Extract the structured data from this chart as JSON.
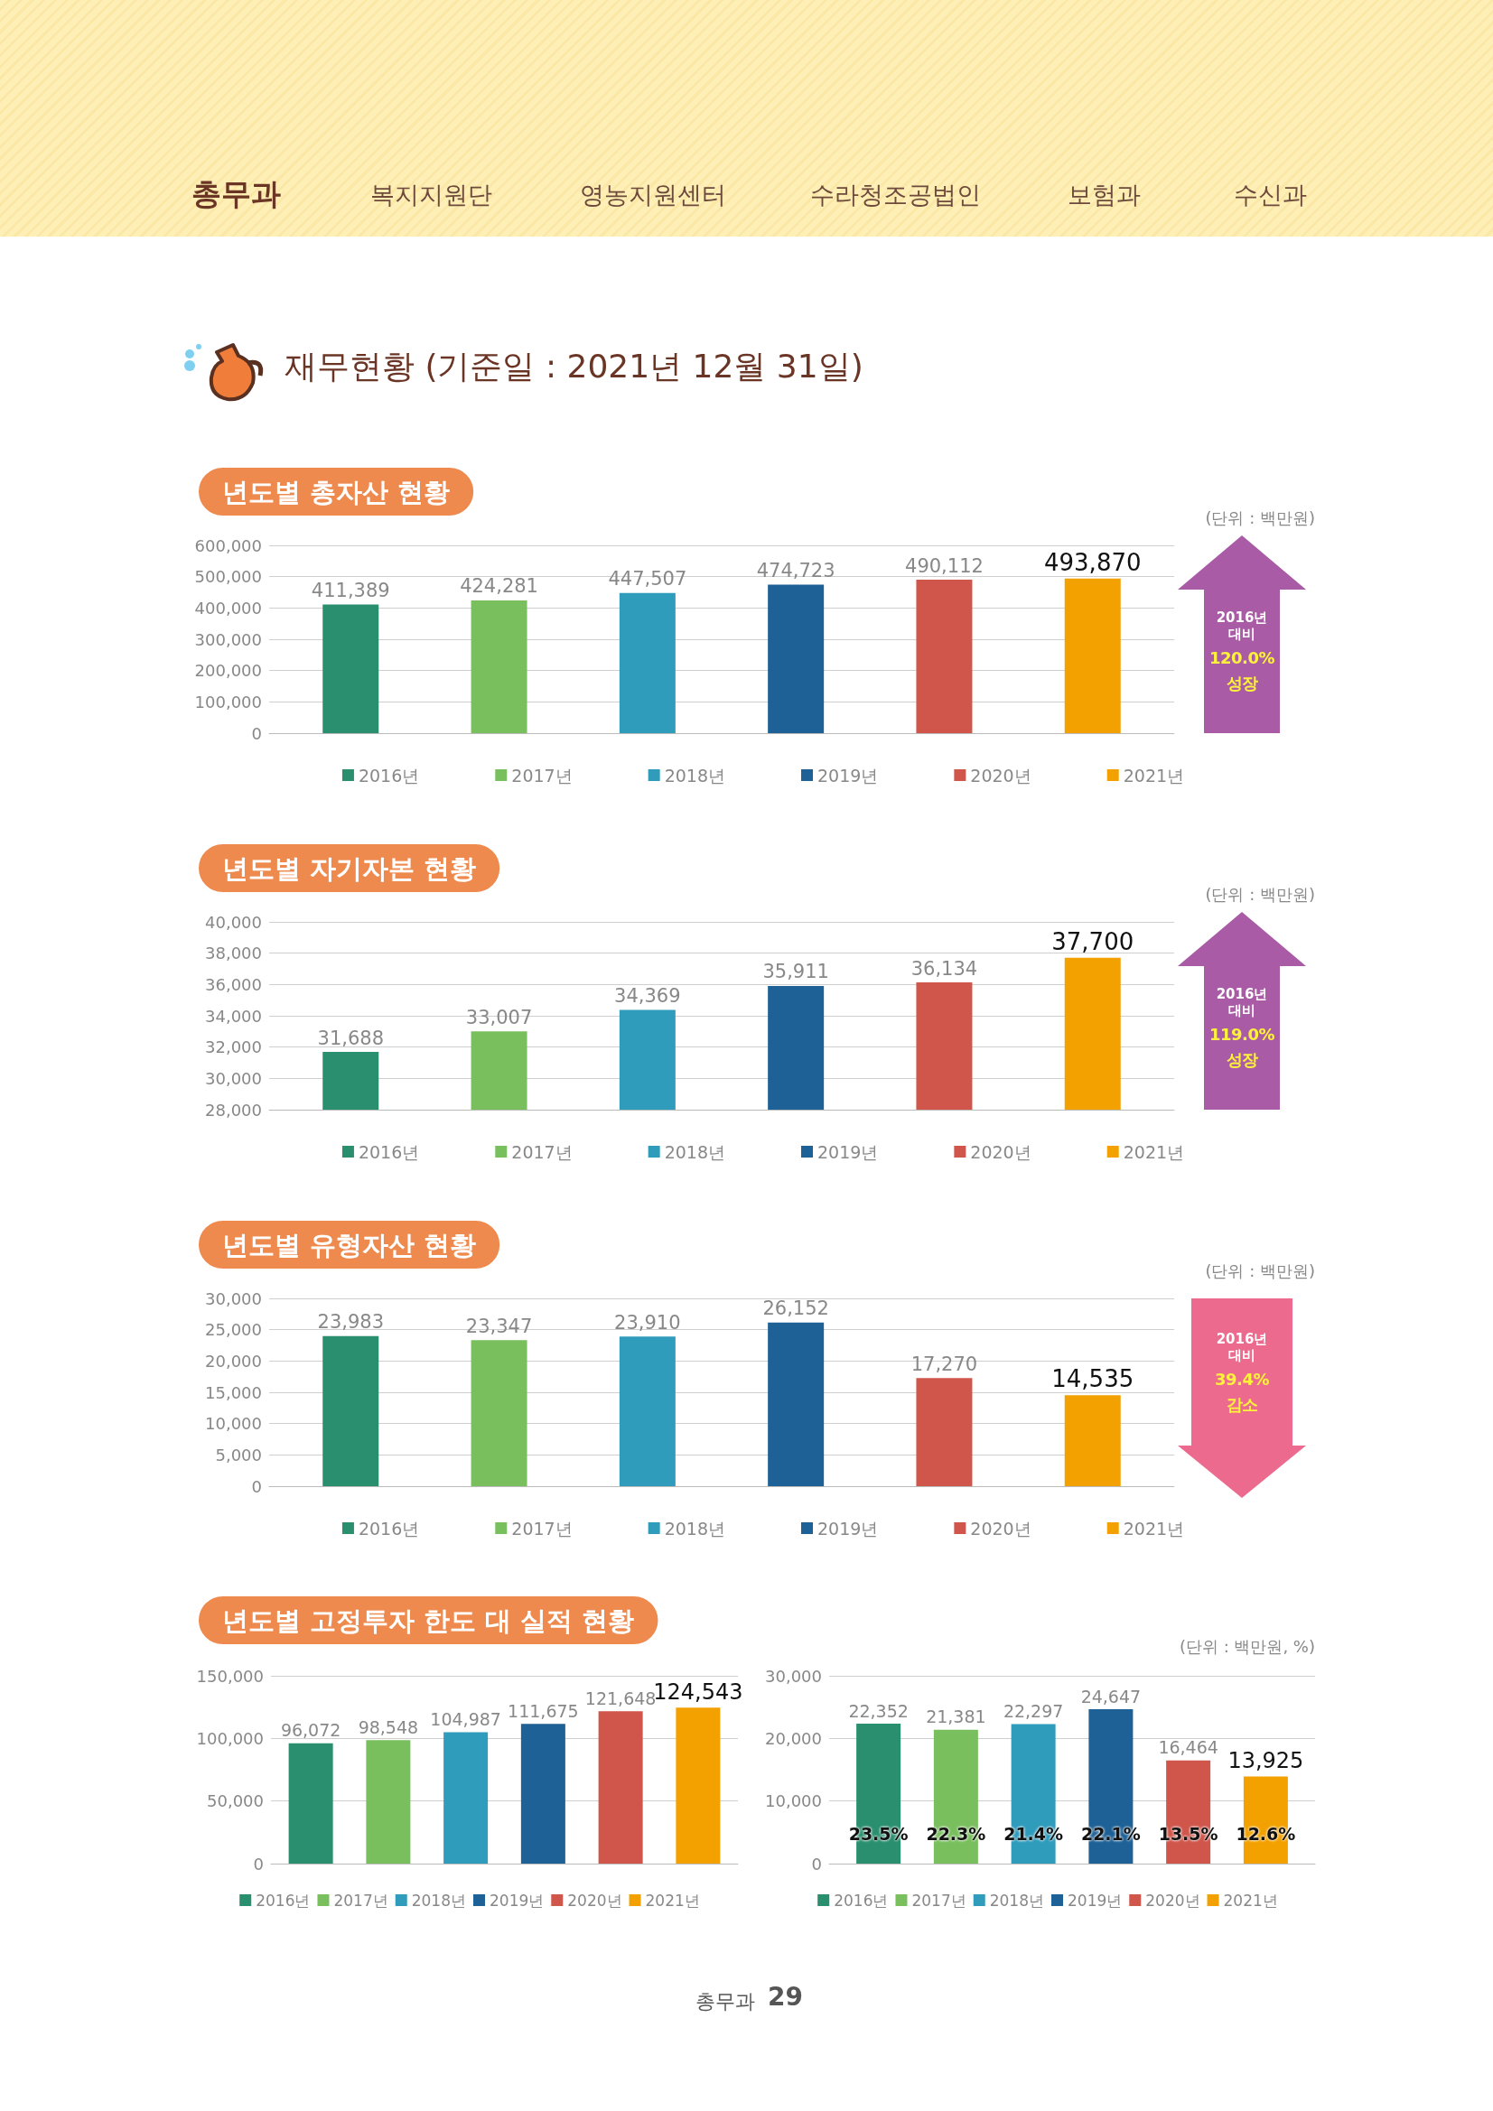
{
  "chart_data": [
    {
      "type": "other",
      "title": "재무현황 (기준일 : 2021년 12월 31일)",
      "annotations": [
        "총무과",
        "복지지원단",
        "영농지원센터",
        "수라청조공법인",
        "보험과",
        "수신과",
        "총무과",
        "29"
      ]
    },
    {
      "type": "bar",
      "title": "년도별 총자산 현황",
      "categories": [
        null
      ],
      "series": [
        {
          "name": "2016년",
          "color": "#2a8f6e",
          "values": [
            411389
          ],
          "value_labels": [
            "411,389"
          ]
        },
        {
          "name": "2017년",
          "color": "#79bf5e",
          "values": [
            424281
          ],
          "value_labels": [
            "424,281"
          ]
        },
        {
          "name": "2018년",
          "color": "#2f9cbc",
          "values": [
            447507
          ],
          "value_labels": [
            "447,507"
          ]
        },
        {
          "name": "2019년",
          "color": "#1d6196",
          "values": [
            474723
          ],
          "value_labels": [
            "474,723"
          ]
        },
        {
          "name": "2020년",
          "color": "#d0554b",
          "values": [
            490112
          ],
          "value_labels": [
            "490,112"
          ]
        },
        {
          "name": "2021년",
          "color": "#f3a100",
          "values": [
            493870
          ],
          "value_labels": [
            "493,870"
          ]
        }
      ],
      "ylim": [
        0,
        600000
      ],
      "yticks": [
        {
          "value": 0,
          "label": "0"
        },
        {
          "value": 100000,
          "label": "100,000"
        },
        {
          "value": 200000,
          "label": "200,000"
        },
        {
          "value": 300000,
          "label": "300,000"
        },
        {
          "value": 400000,
          "label": "400,000"
        },
        {
          "value": 500000,
          "label": "500,000"
        },
        {
          "value": 600000,
          "label": "600,000"
        }
      ],
      "grid": "y",
      "legend": "bottom",
      "tick_labels": "y",
      "annotations": [
        "(단위 : 백만원)",
        "2016년 대비",
        "120.0% 성장"
      ]
    },
    {
      "type": "bar",
      "title": "년도별 자기자본 현황",
      "categories": [
        null
      ],
      "series": [
        {
          "name": "2016년",
          "color": "#2a8f6e",
          "values": [
            31688
          ],
          "value_labels": [
            "31,688"
          ]
        },
        {
          "name": "2017년",
          "color": "#79bf5e",
          "values": [
            33007
          ],
          "value_labels": [
            "33,007"
          ]
        },
        {
          "name": "2018년",
          "color": "#2f9cbc",
          "values": [
            34369
          ],
          "value_labels": [
            "34,369"
          ]
        },
        {
          "name": "2019년",
          "color": "#1d6196",
          "values": [
            35911
          ],
          "value_labels": [
            "35,911"
          ]
        },
        {
          "name": "2020년",
          "color": "#d0554b",
          "values": [
            36134
          ],
          "value_labels": [
            "36,134"
          ]
        },
        {
          "name": "2021년",
          "color": "#f3a100",
          "values": [
            37700
          ],
          "value_labels": [
            "37,700"
          ]
        }
      ],
      "ylim": [
        28000,
        40000
      ],
      "yticks": [
        {
          "value": 28000,
          "label": "28,000"
        },
        {
          "value": 30000,
          "label": "30,000"
        },
        {
          "value": 32000,
          "label": "32,000"
        },
        {
          "value": 34000,
          "label": "34,000"
        },
        {
          "value": 36000,
          "label": "36,000"
        },
        {
          "value": 38000,
          "label": "38,000"
        },
        {
          "value": 40000,
          "label": "40,000"
        }
      ],
      "grid": "y",
      "legend": "bottom",
      "tick_labels": "y",
      "annotations": [
        "(단위 : 백만원)",
        "2016년 대비",
        "119.0% 성장"
      ]
    },
    {
      "type": "bar",
      "title": "년도별 유형자산 현황",
      "categories": [
        null
      ],
      "series": [
        {
          "name": "2016년",
          "color": "#2a8f6e",
          "values": [
            23983
          ],
          "value_labels": [
            "23,983"
          ]
        },
        {
          "name": "2017년",
          "color": "#79bf5e",
          "values": [
            23347
          ],
          "value_labels": [
            "23,347"
          ]
        },
        {
          "name": "2018년",
          "color": "#2f9cbc",
          "values": [
            23910
          ],
          "value_labels": [
            "23,910"
          ]
        },
        {
          "name": "2019년",
          "color": "#1d6196",
          "values": [
            26152
          ],
          "value_labels": [
            "26,152"
          ]
        },
        {
          "name": "2020년",
          "color": "#d0554b",
          "values": [
            17270
          ],
          "value_labels": [
            "17,270"
          ]
        },
        {
          "name": "2021년",
          "color": "#f3a100",
          "values": [
            14535
          ],
          "value_labels": [
            "14,535"
          ]
        }
      ],
      "ylim": [
        0,
        30000
      ],
      "yticks": [
        {
          "value": 0,
          "label": "0"
        },
        {
          "value": 5000,
          "label": "5,000"
        },
        {
          "value": 10000,
          "label": "10,000"
        },
        {
          "value": 15000,
          "label": "15,000"
        },
        {
          "value": 20000,
          "label": "20,000"
        },
        {
          "value": 25000,
          "label": "25,000"
        },
        {
          "value": 30000,
          "label": "30,000"
        }
      ],
      "grid": "y",
      "legend": "bottom",
      "tick_labels": "y",
      "annotations": [
        "(단위 : 백만원)",
        "2016년 대비",
        "39.4% 감소"
      ]
    },
    {
      "type": "bar",
      "title": "년도별 고정투자 한도 대 실적 현황",
      "categories": [
        null
      ],
      "series": [
        {
          "name": "2016년",
          "color": "#2a8f6e",
          "values": [
            96072
          ],
          "value_labels": [
            "96,072"
          ]
        },
        {
          "name": "2017년",
          "color": "#79bf5e",
          "values": [
            98548
          ],
          "value_labels": [
            "98,548"
          ]
        },
        {
          "name": "2018년",
          "color": "#2f9cbc",
          "values": [
            104987
          ],
          "value_labels": [
            "104,987"
          ]
        },
        {
          "name": "2019년",
          "color": "#1d6196",
          "values": [
            111675
          ],
          "value_labels": [
            "111,675"
          ]
        },
        {
          "name": "2020년",
          "color": "#d0554b",
          "values": [
            121648
          ],
          "value_labels": [
            "121,648"
          ]
        },
        {
          "name": "2021년",
          "color": "#f3a100",
          "values": [
            124543
          ],
          "value_labels": [
            "124,543"
          ]
        }
      ],
      "ylim": [
        0,
        150000
      ],
      "yticks": [
        {
          "value": 0,
          "label": "0"
        },
        {
          "value": 50000,
          "label": "50,000"
        },
        {
          "value": 100000,
          "label": "100,000"
        },
        {
          "value": 150000,
          "label": "150,000"
        }
      ],
      "grid": "y",
      "legend": "bottom",
      "tick_labels": "y"
    },
    {
      "type": "bar",
      "categories": [
        null
      ],
      "series": [
        {
          "name": "2016년",
          "color": "#2a8f6e",
          "values": [
            22352
          ],
          "value_labels": [
            "22,352"
          ]
        },
        {
          "name": "2017년",
          "color": "#79bf5e",
          "values": [
            21381
          ],
          "value_labels": [
            "21,381"
          ]
        },
        {
          "name": "2018년",
          "color": "#2f9cbc",
          "values": [
            22297
          ],
          "value_labels": [
            "22,297"
          ]
        },
        {
          "name": "2019년",
          "color": "#1d6196",
          "values": [
            24647
          ],
          "value_labels": [
            "24,647"
          ]
        },
        {
          "name": "2020년",
          "color": "#d0554b",
          "values": [
            16464
          ],
          "value_labels": [
            "16,464"
          ]
        },
        {
          "name": "2021년",
          "color": "#f3a100",
          "values": [
            13925
          ],
          "value_labels": [
            "13,925"
          ]
        }
      ],
      "ylim": [
        0,
        30000
      ],
      "yticks": [
        {
          "value": 0,
          "label": "0"
        },
        {
          "value": 10000,
          "label": "10,000"
        },
        {
          "value": 20000,
          "label": "20,000"
        },
        {
          "value": 30000,
          "label": "30,000"
        }
      ],
      "grid": "y",
      "legend": "bottom",
      "tick_labels": "y",
      "annotations": [
        "(단위 : 백만원, %)",
        "23.5%",
        "22.3%",
        "21.4%",
        "22.1%",
        "13.5%",
        "12.6%"
      ]
    }
  ]
}
